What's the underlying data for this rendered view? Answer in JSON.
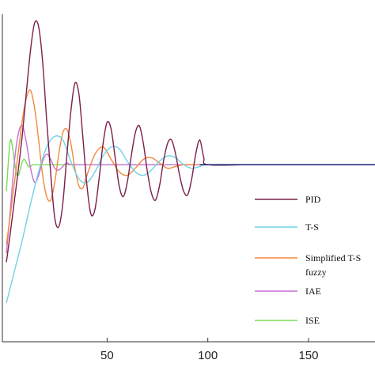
{
  "chart_data": {
    "type": "line",
    "title": "",
    "xlabel": "",
    "ylabel": "",
    "xlim": [
      -2,
      183
    ],
    "ylim": [
      -1.0,
      0.85
    ],
    "x_ticks": [
      50,
      100,
      150
    ],
    "x_tick_labels": [
      "50",
      "100",
      "150"
    ],
    "grid": false,
    "legend_position": "right",
    "setpoint": 0,
    "series": [
      {
        "name": "PID",
        "color": "#7b1f4a",
        "x": [
          0,
          2,
          4,
          6,
          8,
          10,
          12,
          14,
          16,
          18,
          20,
          22,
          24,
          26,
          28,
          30,
          32,
          34,
          36,
          38,
          40,
          42,
          44,
          46,
          48,
          50,
          52,
          54,
          56,
          58,
          60,
          62,
          64,
          66,
          68,
          70,
          72,
          74,
          76,
          78,
          80,
          82,
          84,
          86,
          88,
          90,
          92,
          94,
          96,
          98,
          100,
          120,
          140,
          160,
          183
        ],
        "y": [
          -0.55,
          -0.38,
          -0.2,
          -0.02,
          0.18,
          0.42,
          0.65,
          0.8,
          0.78,
          0.58,
          0.25,
          -0.05,
          -0.3,
          -0.35,
          -0.22,
          0.05,
          0.3,
          0.46,
          0.4,
          0.15,
          -0.12,
          -0.28,
          -0.25,
          -0.08,
          0.12,
          0.24,
          0.2,
          0.04,
          -0.12,
          -0.18,
          -0.1,
          0.05,
          0.18,
          0.22,
          0.12,
          -0.04,
          -0.16,
          -0.2,
          -0.12,
          0.02,
          0.12,
          0.14,
          0.06,
          -0.06,
          -0.15,
          -0.17,
          -0.08,
          0.06,
          0.14,
          0.04,
          0.0,
          0.0,
          0.0,
          0.0,
          0.0
        ]
      },
      {
        "name": "T-S",
        "color": "#6fd3e6",
        "x": [
          0,
          4,
          8,
          12,
          16,
          20,
          24,
          28,
          32,
          36,
          40,
          44,
          48,
          52,
          56,
          60,
          64,
          68,
          72,
          76,
          80,
          84,
          88,
          92,
          96,
          100,
          120,
          140,
          160,
          183
        ],
        "y": [
          -0.78,
          -0.6,
          -0.42,
          -0.22,
          -0.04,
          0.1,
          0.16,
          0.14,
          0.02,
          -0.08,
          -0.1,
          -0.04,
          0.05,
          0.1,
          0.09,
          0.02,
          -0.04,
          -0.06,
          -0.03,
          0.02,
          0.05,
          0.04,
          0.0,
          -0.02,
          -0.01,
          0.0,
          0.0,
          0.0,
          0.0,
          0.0
        ]
      },
      {
        "name": "Simplified T-S fuzzy",
        "color": "#f08a3c",
        "x": [
          0,
          2,
          4,
          6,
          8,
          10,
          12,
          14,
          16,
          18,
          20,
          22,
          24,
          26,
          28,
          30,
          32,
          34,
          36,
          38,
          40,
          44,
          48,
          52,
          56,
          60,
          64,
          68,
          72,
          76,
          80,
          84,
          88,
          92,
          96,
          100,
          120,
          140,
          160,
          183
        ],
        "y": [
          -0.45,
          -0.28,
          -0.1,
          0.08,
          0.26,
          0.38,
          0.42,
          0.32,
          0.14,
          -0.06,
          -0.18,
          -0.2,
          -0.1,
          0.06,
          0.18,
          0.2,
          0.12,
          -0.02,
          -0.12,
          -0.13,
          -0.06,
          0.06,
          0.1,
          0.03,
          -0.04,
          -0.06,
          -0.02,
          0.03,
          0.04,
          0.01,
          -0.02,
          -0.01,
          0.0,
          0.0,
          0.0,
          0.0,
          0.0,
          0.0,
          0.0,
          0.0
        ]
      },
      {
        "name": "IAE",
        "color": "#c86fd6",
        "x": [
          0,
          2,
          4,
          6,
          8,
          10,
          12,
          14,
          16,
          18,
          20,
          22,
          24,
          26,
          28,
          30,
          32,
          36,
          40,
          50,
          100,
          183
        ],
        "y": [
          -0.5,
          -0.25,
          0.02,
          0.18,
          0.22,
          0.12,
          -0.02,
          -0.1,
          -0.06,
          0.02,
          0.06,
          0.03,
          -0.02,
          -0.03,
          -0.01,
          0.01,
          0.0,
          0.0,
          0.0,
          0.0,
          0.0,
          0.0
        ]
      },
      {
        "name": "ISE",
        "color": "#77dd55",
        "x": [
          0,
          1,
          2,
          3,
          4,
          5,
          6,
          7,
          8,
          9,
          10,
          11,
          12,
          13,
          14,
          16,
          18,
          20,
          30,
          50,
          100,
          183
        ],
        "y": [
          -0.15,
          0.02,
          0.14,
          0.1,
          0.02,
          -0.05,
          -0.06,
          -0.02,
          0.02,
          0.03,
          0.01,
          -0.01,
          -0.01,
          0.0,
          0.0,
          0.0,
          0.0,
          0.0,
          0.0,
          0.0,
          0.0,
          0.0
        ]
      }
    ],
    "legend": [
      {
        "label": "PID",
        "color": "#7b1f4a"
      },
      {
        "label": "T-S",
        "color": "#6fd3e6"
      },
      {
        "label": "Simplified T-S fuzzy",
        "color": "#f08a3c"
      },
      {
        "label": "IAE",
        "color": "#c86fd6"
      },
      {
        "label": "ISE",
        "color": "#77dd55"
      }
    ],
    "colors": {
      "setpoint": "#2b2f80",
      "axis": "#333333"
    }
  }
}
